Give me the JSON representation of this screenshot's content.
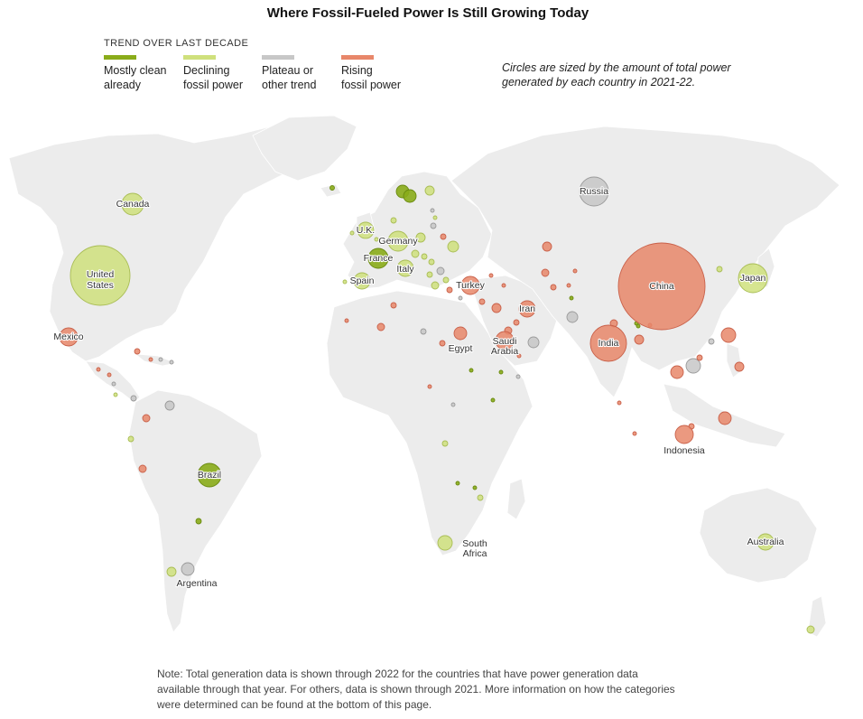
{
  "title": "Where Fossil-Fueled Power Is Still Growing Today",
  "legend": {
    "heading": "TREND OVER LAST DECADE",
    "items": [
      {
        "key": "clean",
        "line1": "Mostly clean",
        "line2": "already",
        "color": "#8aac1a"
      },
      {
        "key": "declining",
        "line1": "Declining",
        "line2": "fossil power",
        "color": "#cfe07c"
      },
      {
        "key": "plateau",
        "line1": "Plateau or",
        "line2": "other trend",
        "color": "#c7c7c7"
      },
      {
        "key": "rising",
        "line1": "Rising",
        "line2": "fossil power",
        "color": "#e8876a"
      }
    ],
    "size_note_line1": "Circles are sized by the amount of total power",
    "size_note_line2": "generated by each country in 2021-22."
  },
  "note": {
    "line1": "Note: Total generation data is shown through 2022 for the countries that have power generation data",
    "line2": "available through that year. For others, data is shown through 2021. More information on how the categories",
    "line3": "were determined can be found at the bottom of this page."
  },
  "colors": {
    "land": "#ececec",
    "clean": "#8aac1a",
    "declining": "#cfe07c",
    "plateau": "#c7c7c7",
    "rising": "#e8876a"
  },
  "chart_data": {
    "type": "bubble-map",
    "title": "Where Fossil-Fueled Power Is Still Growing Today",
    "categories": [
      "Mostly clean already",
      "Declining fossil power",
      "Plateau or other trend",
      "Rising fossil power"
    ],
    "labeled_countries": [
      {
        "name": "China",
        "trend": "rising"
      },
      {
        "name": "United States",
        "trend": "declining"
      },
      {
        "name": "India",
        "trend": "rising"
      },
      {
        "name": "Russia",
        "trend": "plateau"
      },
      {
        "name": "Japan",
        "trend": "declining"
      },
      {
        "name": "Brazil",
        "trend": "clean"
      },
      {
        "name": "Canada",
        "trend": "declining"
      },
      {
        "name": "Germany",
        "trend": "declining"
      },
      {
        "name": "France",
        "trend": "clean"
      },
      {
        "name": "U.K.",
        "trend": "declining"
      },
      {
        "name": "Italy",
        "trend": "declining"
      },
      {
        "name": "Spain",
        "trend": "declining"
      },
      {
        "name": "Turkey",
        "trend": "rising"
      },
      {
        "name": "Iran",
        "trend": "rising"
      },
      {
        "name": "Saudi Arabia",
        "trend": "rising"
      },
      {
        "name": "Mexico",
        "trend": "rising"
      },
      {
        "name": "Indonesia",
        "trend": "rising"
      },
      {
        "name": "Australia",
        "trend": "declining"
      },
      {
        "name": "Egypt",
        "trend": "rising"
      },
      {
        "name": "South Africa",
        "trend": "declining"
      },
      {
        "name": "Argentina",
        "trend": "plateau"
      }
    ]
  }
}
